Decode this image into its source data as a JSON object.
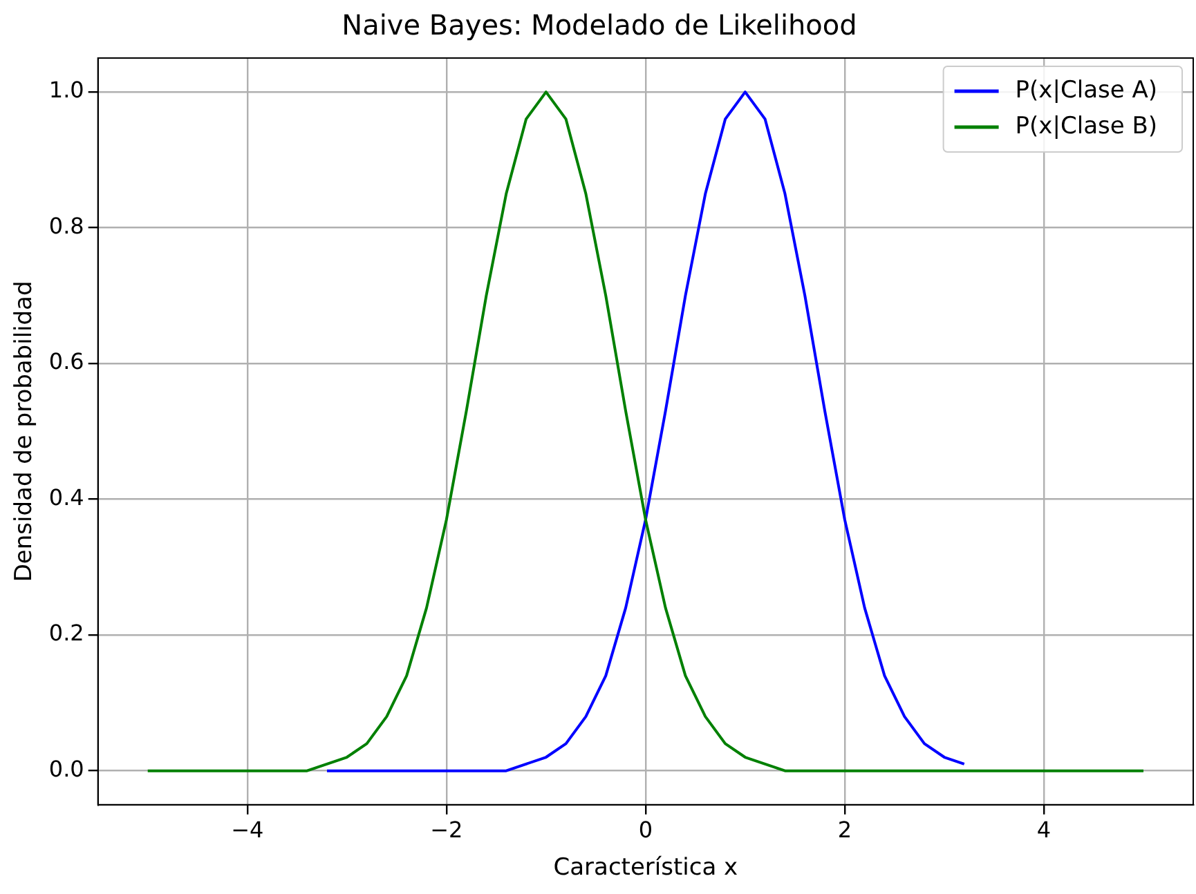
{
  "chart_data": {
    "type": "line",
    "title": "Naive Bayes: Modelado de Likelihood",
    "xlabel": "Característica x",
    "ylabel": "Densidad de probabilidad",
    "x": [
      -5,
      -4.8,
      -4.6,
      -4.4,
      -4.2,
      -4,
      -3.8,
      -3.6,
      -3.4,
      -3.2,
      -3,
      -2.8,
      -2.6,
      -2.4,
      -2.2,
      -2,
      -1.8,
      -1.6,
      -1.4,
      -1.2,
      -1,
      -0.8,
      -0.6,
      -0.4,
      -0.2,
      0,
      0.2,
      0.4,
      0.6,
      0.8,
      1,
      1.2,
      1.4,
      1.6,
      1.8,
      2,
      2.2,
      2.4,
      2.6,
      2.8,
      3,
      3.2,
      3.4,
      3.6,
      3.8,
      4,
      4.2,
      4.4,
      4.6,
      4.8,
      5
    ],
    "series": [
      {
        "name": "P(x|Clase A)",
        "color": "#0000ff",
        "values": [
          null,
          null,
          null,
          null,
          null,
          null,
          null,
          null,
          null,
          0,
          0,
          0,
          0,
          0,
          0,
          0,
          0,
          0,
          0,
          0.01,
          0.02,
          0.04,
          0.08,
          0.14,
          0.24,
          0.37,
          0.53,
          0.7,
          0.85,
          0.96,
          1,
          0.96,
          0.85,
          0.7,
          0.53,
          0.37,
          0.24,
          0.14,
          0.08,
          0.04,
          0.02,
          0.01,
          null,
          null,
          null,
          null,
          null,
          null,
          null,
          null,
          null
        ]
      },
      {
        "name": "P(x|Clase B)",
        "color": "#008000",
        "values": [
          0,
          0,
          0,
          0,
          0,
          0,
          0,
          0,
          0,
          0.01,
          0.02,
          0.04,
          0.08,
          0.14,
          0.24,
          0.37,
          0.53,
          0.7,
          0.85,
          0.96,
          1,
          0.96,
          0.85,
          0.7,
          0.53,
          0.37,
          0.24,
          0.14,
          0.08,
          0.04,
          0.02,
          0.01,
          0,
          0,
          0,
          0,
          0,
          0,
          0,
          0,
          0,
          0,
          0,
          0,
          0,
          0,
          0,
          0,
          0,
          0,
          0
        ]
      }
    ],
    "xlim": [
      -5.5,
      5.5
    ],
    "xticks": [
      {
        "value": -4,
        "label": "−4"
      },
      {
        "value": -2,
        "label": "−2"
      },
      0,
      2,
      4
    ],
    "ylim": [
      -0.05,
      1.05
    ],
    "yticks": [
      {
        "value": 0,
        "label": "0.0"
      },
      {
        "value": 0.2,
        "label": "0.2"
      },
      {
        "value": 0.4,
        "label": "0.4"
      },
      {
        "value": 0.6,
        "label": "0.6"
      },
      {
        "value": 0.8,
        "label": "0.8"
      },
      {
        "value": 1,
        "label": "1.0"
      }
    ],
    "grid": true,
    "legend": "top right",
    "marker": "none",
    "line_style": "solid"
  }
}
